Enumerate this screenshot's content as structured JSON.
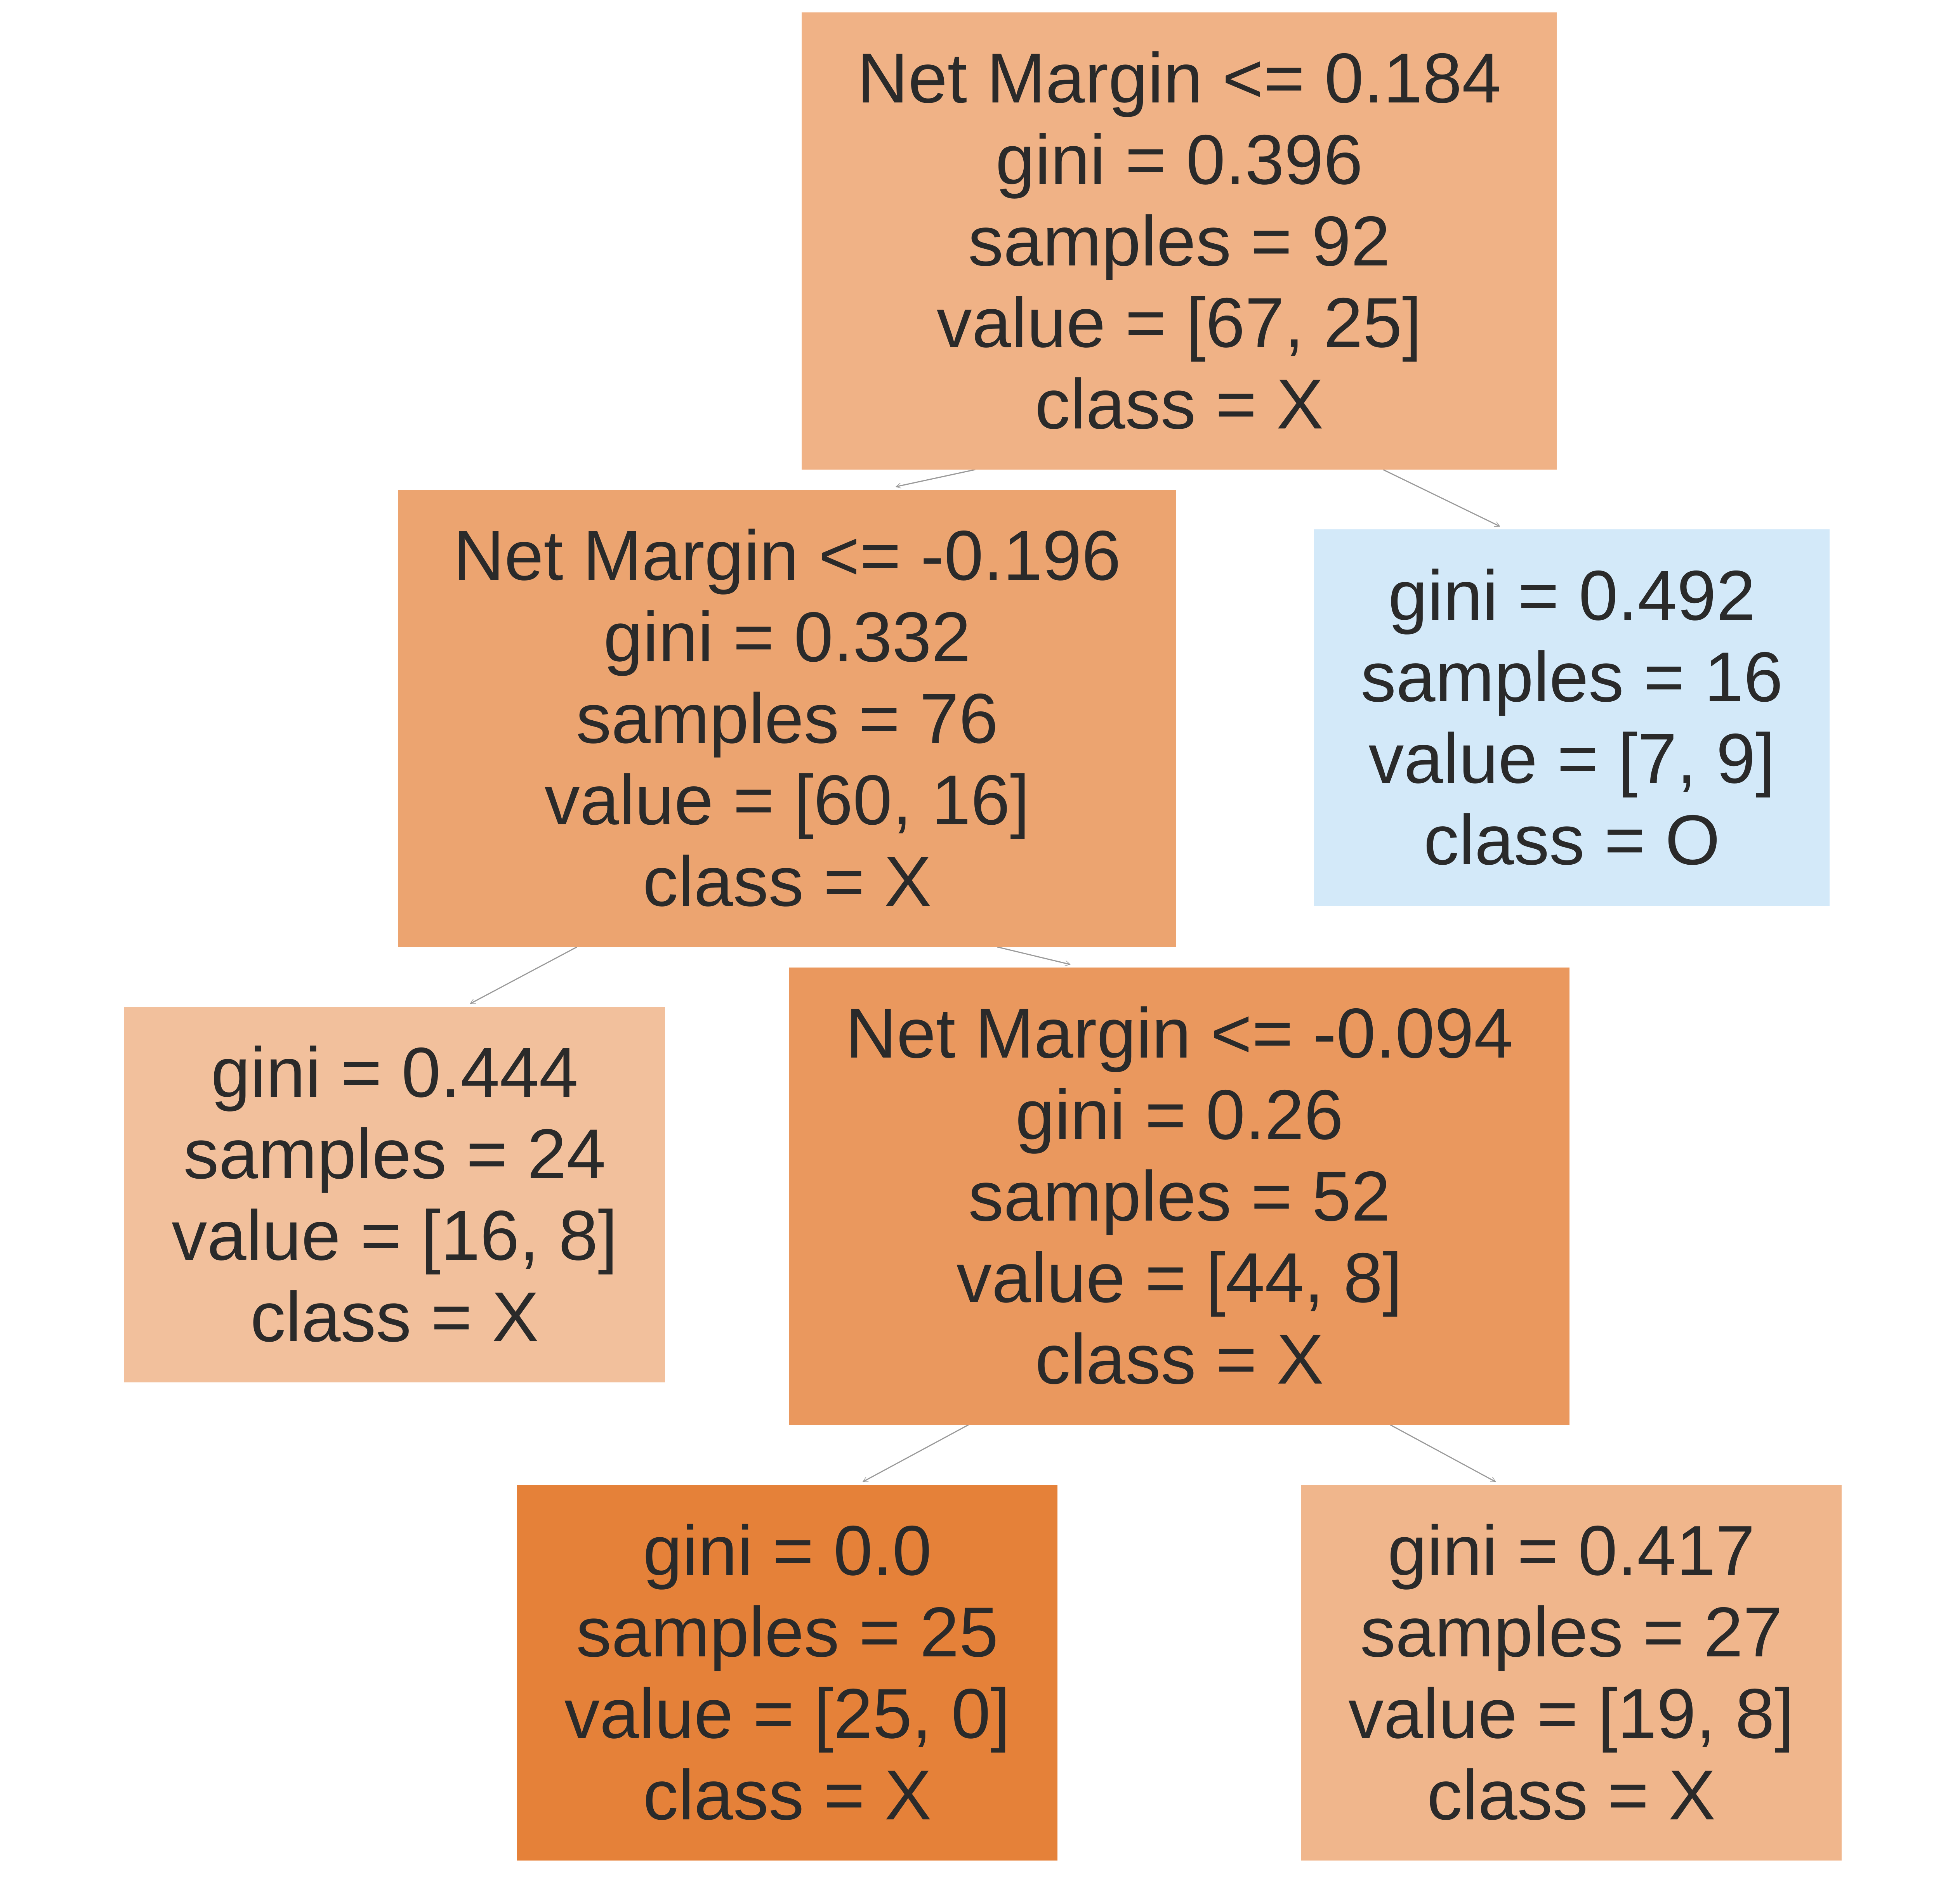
{
  "colors": {
    "text": "#2a2a2a",
    "edge": "#9a9a9a"
  },
  "nodes": [
    {
      "id": "n0",
      "lines": [
        "Net Margin <= 0.184",
        "gini = 0.396",
        "samples = 92",
        "value = [67, 25]",
        "class = X"
      ],
      "fill": "#f0b286"
    },
    {
      "id": "n1",
      "lines": [
        "Net Margin <= -0.196",
        "gini = 0.332",
        "samples = 76",
        "value = [60, 16]",
        "class = X"
      ],
      "fill": "#eca470"
    },
    {
      "id": "n2",
      "lines": [
        "gini = 0.444",
        "samples = 24",
        "value = [16, 8]",
        "class = X"
      ],
      "fill": "#f2c09c"
    },
    {
      "id": "n3",
      "lines": [
        "Net Margin <= -0.094",
        "gini = 0.26",
        "samples = 52",
        "value = [44, 8]",
        "class = X"
      ],
      "fill": "#ea985e"
    },
    {
      "id": "n4",
      "lines": [
        "gini = 0.0",
        "samples = 25",
        "value = [25, 0]",
        "class = X"
      ],
      "fill": "#e58139"
    },
    {
      "id": "n5",
      "lines": [
        "gini = 0.417",
        "samples = 27",
        "value = [19, 8]",
        "class = X"
      ],
      "fill": "#f0b68c"
    },
    {
      "id": "n6",
      "lines": [
        "gini = 0.492",
        "samples = 16",
        "value = [7, 9]",
        "class = O"
      ],
      "fill": "#d3e9f9"
    }
  ],
  "edges": [
    {
      "from": "n0",
      "to": "n1"
    },
    {
      "from": "n0",
      "to": "n6"
    },
    {
      "from": "n1",
      "to": "n2"
    },
    {
      "from": "n1",
      "to": "n3"
    },
    {
      "from": "n3",
      "to": "n4"
    },
    {
      "from": "n3",
      "to": "n5"
    }
  ]
}
